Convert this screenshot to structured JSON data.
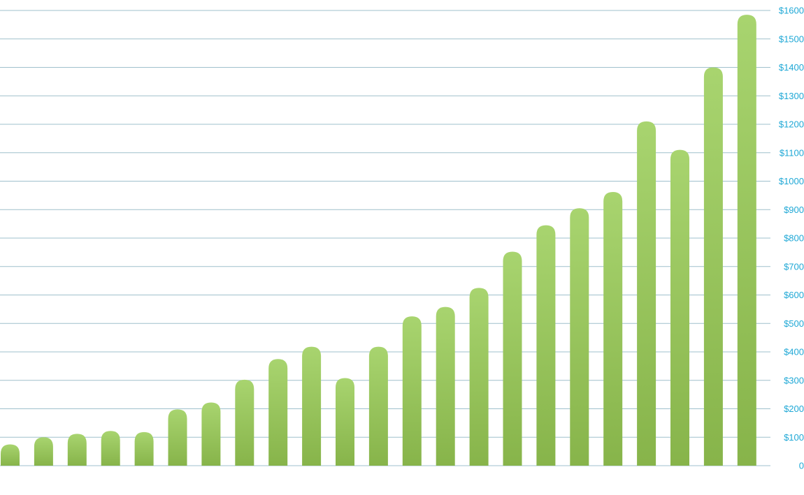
{
  "chart_data": {
    "type": "bar",
    "title": "",
    "xlabel": "",
    "ylabel": "",
    "ylim": [
      0,
      1600
    ],
    "y_ticks": [
      0,
      100,
      200,
      300,
      400,
      500,
      600,
      700,
      800,
      900,
      1000,
      1100,
      1200,
      1300,
      1400,
      1500,
      1600
    ],
    "y_tick_labels": [
      "0",
      "$100",
      "$200",
      "$300",
      "$400",
      "$500",
      "$600",
      "$700",
      "$800",
      "$900",
      "$1000",
      "$1100",
      "$1200",
      "$1300",
      "$1400",
      "$1500",
      "$1600"
    ],
    "y_axis_side": "right",
    "grid": true,
    "legend": "none",
    "values": [
      75,
      100,
      112,
      122,
      118,
      198,
      222,
      302,
      375,
      418,
      308,
      418,
      525,
      558,
      625,
      752,
      845,
      905,
      962,
      1210,
      1110,
      1400,
      1585
    ]
  },
  "colors": {
    "bar_top": "#a8d46f",
    "bar_bottom": "#87b44a",
    "gridline": "#9fc0cc",
    "tick_text": "#1fa8d6",
    "axis_line": "#9fc0cc"
  }
}
